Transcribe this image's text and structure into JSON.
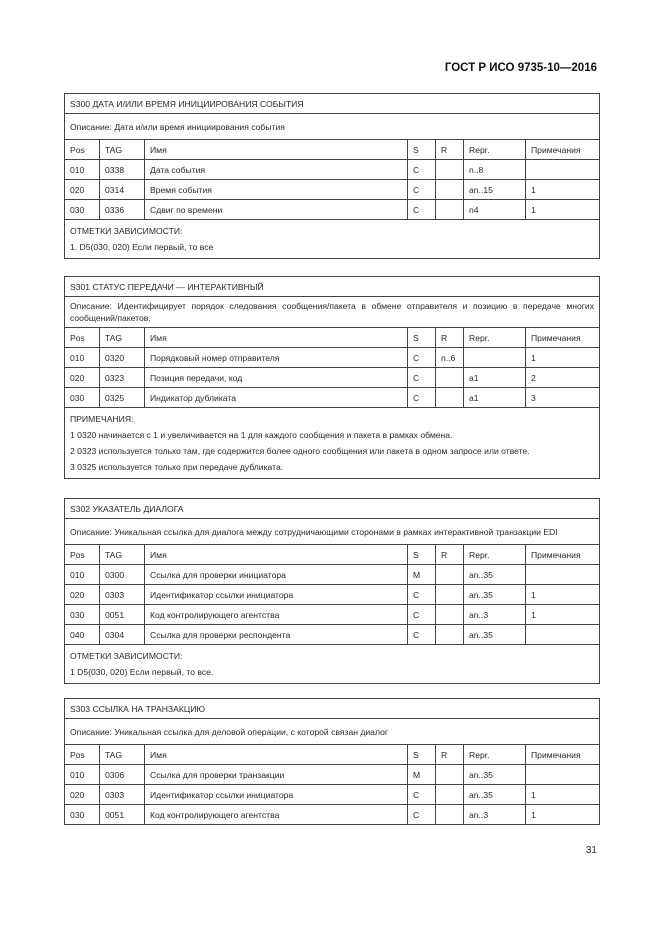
{
  "header": {
    "standard": "ГОСТ Р ИСО 9735-10—2016"
  },
  "footer": {
    "page_number": "31"
  },
  "columns": [
    "Pos",
    "TAG",
    "Имя",
    "S",
    "R",
    "Repr.",
    "Примечания"
  ],
  "tables": [
    {
      "title": "S300 ДАТА И/ИЛИ ВРЕМЯ ИНИЦИИРОВАНИЯ СОБЫТИЯ",
      "description": "Описание: Дата и/или время инициирования события",
      "rows": [
        [
          "010",
          "0338",
          "Дата события",
          "C",
          "",
          "n..8",
          ""
        ],
        [
          "020",
          "0314",
          "Время события",
          "C",
          "",
          "an..15",
          "1"
        ],
        [
          "030",
          "0336",
          "Сдвиг по времени",
          "C",
          "",
          "n4",
          "1"
        ]
      ],
      "notes": [
        "ОТМЕТКИ ЗАВИСИМОСТИ:",
        "1. D5(030, 020) Если первый, то все"
      ]
    },
    {
      "title": "S301 СТАТУС ПЕРЕДАЧИ — ИНТЕРАКТИВНЫЙ",
      "description": "Описание: Идентифицирует порядок следования сообщения/пакета в обмене отправителя и позицию в передаче многих сообщений/пакетов.",
      "rows": [
        [
          "010",
          "0320",
          "Порядковый номер отправителя",
          "C",
          "n..6",
          "",
          "1"
        ],
        [
          "020",
          "0323",
          "Позиция передачи, код",
          "C",
          "",
          "a1",
          "2"
        ],
        [
          "030",
          "0325",
          "Индикатор дубликата",
          "C",
          "",
          "a1",
          "3"
        ]
      ],
      "notes": [
        "ПРИМЕЧАНИЯ:",
        "1 0320 начинается с 1 и увеличивается на 1 для каждого сообщения и пакета в рамках обмена.",
        "2 0323 используется только там, где содержится более одного сообщения или пакета в одном запросе или ответе.",
        "3 0325 используется только при передаче дубликата."
      ]
    },
    {
      "title": "S302 УКАЗАТЕЛЬ ДИАЛОГА",
      "description": "Описание: Уникальная ссылка для диалога между сотрудничающими сторонами в рамках интерактивной транзакции EDI",
      "rows": [
        [
          "010",
          "0300",
          "Ссылка для проверки инициатора",
          "M",
          "",
          "an..35",
          ""
        ],
        [
          "020",
          "0303",
          "Идентификатор ссылки инициатора",
          "C",
          "",
          "an..35",
          "1"
        ],
        [
          "030",
          "0051",
          "Код контролирующего агентства",
          "C",
          "",
          "an..3",
          "1"
        ],
        [
          "040",
          "0304",
          "Ссылка для проверки респондента",
          "C",
          "",
          "an..35",
          ""
        ]
      ],
      "notes": [
        "ОТМЕТКИ ЗАВИСИМОСТИ:",
        "1 D5(030, 020) Если первый, то все."
      ]
    },
    {
      "title": "S303 ССЫЛКА НА ТРАНЗАКЦИЮ",
      "description": "Описание: Уникальная ссылка для деловой операции, с которой связан диалог",
      "rows": [
        [
          "010",
          "0306",
          "Ссылка для проверки транзакции",
          "M",
          "",
          "an..35",
          ""
        ],
        [
          "020",
          "0303",
          "Идентификатор ссылки инициатора",
          "C",
          "",
          "an..35",
          "1"
        ],
        [
          "030",
          "0051",
          "Код контролирующего агентства",
          "C",
          "",
          "an..3",
          "1"
        ]
      ],
      "notes": []
    }
  ]
}
